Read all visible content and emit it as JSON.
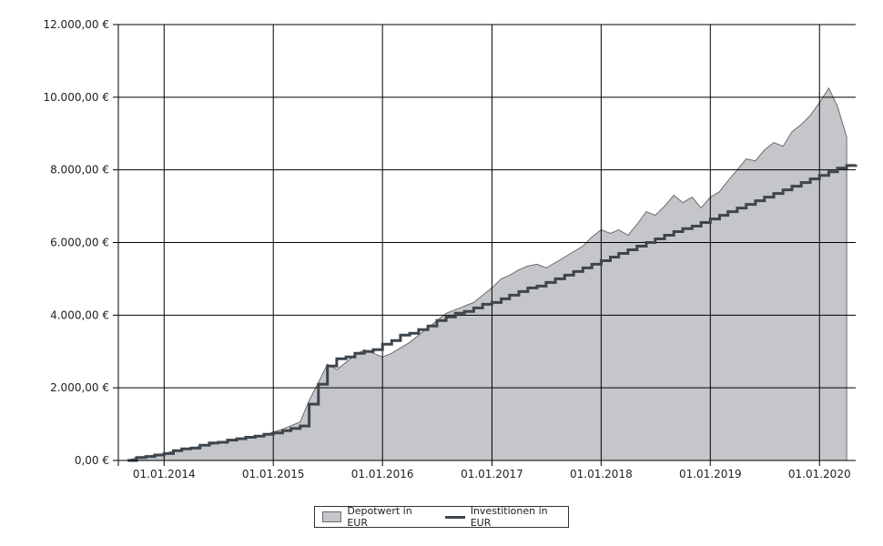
{
  "chart_data": {
    "type": "area",
    "title": "",
    "xlabel": "",
    "ylabel": "",
    "ylim": [
      0,
      12000
    ],
    "xlim": [
      "2013-08-01",
      "2020-05-01"
    ],
    "grid": true,
    "legend_position": "bottom-center",
    "y_ticks": [
      {
        "value": 0,
        "label": "0,00 €"
      },
      {
        "value": 2000,
        "label": "2.000,00 €"
      },
      {
        "value": 4000,
        "label": "4.000,00 €"
      },
      {
        "value": 6000,
        "label": "6.000,00 €"
      },
      {
        "value": 8000,
        "label": "8.000,00 €"
      },
      {
        "value": 10000,
        "label": "10.000,00 €"
      },
      {
        "value": 12000,
        "label": "12.000,00 €"
      }
    ],
    "x_ticks": [
      {
        "date": "2014-01-01",
        "label": "01.01.2014"
      },
      {
        "date": "2015-01-01",
        "label": "01.01.2015"
      },
      {
        "date": "2016-01-01",
        "label": "01.01.2016"
      },
      {
        "date": "2017-01-01",
        "label": "01.01.2017"
      },
      {
        "date": "2018-01-01",
        "label": "01.01.2018"
      },
      {
        "date": "2019-01-01",
        "label": "01.01.2019"
      },
      {
        "date": "2020-01-01",
        "label": "01.01.2020"
      }
    ],
    "series": [
      {
        "name": "Depotwert in EUR",
        "kind": "area",
        "color": "#c4c6c9",
        "stroke": "#6b6b6b",
        "points": [
          [
            "2013-09-01",
            0
          ],
          [
            "2013-10-01",
            80
          ],
          [
            "2013-11-01",
            110
          ],
          [
            "2013-12-01",
            150
          ],
          [
            "2014-01-01",
            190
          ],
          [
            "2014-02-01",
            260
          ],
          [
            "2014-03-01",
            300
          ],
          [
            "2014-04-01",
            330
          ],
          [
            "2014-05-01",
            390
          ],
          [
            "2014-06-01",
            430
          ],
          [
            "2014-07-01",
            470
          ],
          [
            "2014-08-01",
            520
          ],
          [
            "2014-09-01",
            560
          ],
          [
            "2014-10-01",
            620
          ],
          [
            "2014-11-01",
            660
          ],
          [
            "2014-12-01",
            700
          ],
          [
            "2015-01-01",
            780
          ],
          [
            "2015-02-01",
            860
          ],
          [
            "2015-03-01",
            960
          ],
          [
            "2015-04-01",
            1060
          ],
          [
            "2015-05-01",
            1650
          ],
          [
            "2015-06-01",
            2150
          ],
          [
            "2015-07-01",
            2650
          ],
          [
            "2015-08-01",
            2500
          ],
          [
            "2015-09-01",
            2700
          ],
          [
            "2015-10-01",
            2900
          ],
          [
            "2015-11-01",
            3050
          ],
          [
            "2015-12-01",
            2950
          ],
          [
            "2016-01-01",
            2850
          ],
          [
            "2016-02-01",
            2950
          ],
          [
            "2016-03-01",
            3100
          ],
          [
            "2016-04-01",
            3250
          ],
          [
            "2016-05-01",
            3450
          ],
          [
            "2016-06-01",
            3650
          ],
          [
            "2016-07-01",
            3850
          ],
          [
            "2016-08-01",
            4050
          ],
          [
            "2016-09-01",
            4150
          ],
          [
            "2016-10-01",
            4250
          ],
          [
            "2016-11-01",
            4350
          ],
          [
            "2016-12-01",
            4550
          ],
          [
            "2017-01-01",
            4750
          ],
          [
            "2017-02-01",
            5000
          ],
          [
            "2017-03-01",
            5100
          ],
          [
            "2017-04-01",
            5250
          ],
          [
            "2017-05-01",
            5350
          ],
          [
            "2017-06-01",
            5400
          ],
          [
            "2017-07-01",
            5300
          ],
          [
            "2017-08-01",
            5450
          ],
          [
            "2017-09-01",
            5600
          ],
          [
            "2017-10-01",
            5750
          ],
          [
            "2017-11-01",
            5900
          ],
          [
            "2017-12-01",
            6150
          ],
          [
            "2018-01-01",
            6350
          ],
          [
            "2018-02-01",
            6250
          ],
          [
            "2018-03-01",
            6350
          ],
          [
            "2018-04-01",
            6200
          ],
          [
            "2018-05-01",
            6500
          ],
          [
            "2018-06-01",
            6850
          ],
          [
            "2018-07-01",
            6750
          ],
          [
            "2018-08-01",
            7000
          ],
          [
            "2018-09-01",
            7300
          ],
          [
            "2018-10-01",
            7100
          ],
          [
            "2018-11-01",
            7250
          ],
          [
            "2018-12-01",
            6950
          ],
          [
            "2019-01-01",
            7250
          ],
          [
            "2019-02-01",
            7400
          ],
          [
            "2019-03-01",
            7700
          ],
          [
            "2019-04-01",
            8000
          ],
          [
            "2019-05-01",
            8300
          ],
          [
            "2019-06-01",
            8250
          ],
          [
            "2019-07-01",
            8550
          ],
          [
            "2019-08-01",
            8750
          ],
          [
            "2019-09-01",
            8650
          ],
          [
            "2019-10-01",
            9050
          ],
          [
            "2019-11-01",
            9250
          ],
          [
            "2019-12-01",
            9500
          ],
          [
            "2020-01-01",
            9850
          ],
          [
            "2020-02-01",
            10250
          ],
          [
            "2020-03-01",
            9750
          ],
          [
            "2020-04-01",
            8900
          ]
        ]
      },
      {
        "name": "Investitionen in EUR",
        "kind": "step",
        "color": "#3e464d",
        "points": [
          [
            "2013-09-01",
            0
          ],
          [
            "2013-10-01",
            80
          ],
          [
            "2013-11-01",
            110
          ],
          [
            "2013-12-01",
            150
          ],
          [
            "2014-01-01",
            190
          ],
          [
            "2014-02-01",
            270
          ],
          [
            "2014-03-01",
            320
          ],
          [
            "2014-04-01",
            340
          ],
          [
            "2014-05-01",
            420
          ],
          [
            "2014-06-01",
            480
          ],
          [
            "2014-07-01",
            500
          ],
          [
            "2014-08-01",
            560
          ],
          [
            "2014-09-01",
            600
          ],
          [
            "2014-10-01",
            640
          ],
          [
            "2014-11-01",
            670
          ],
          [
            "2014-12-01",
            720
          ],
          [
            "2015-01-01",
            760
          ],
          [
            "2015-02-01",
            820
          ],
          [
            "2015-03-01",
            880
          ],
          [
            "2015-04-01",
            950
          ],
          [
            "2015-05-01",
            1550
          ],
          [
            "2015-06-01",
            2100
          ],
          [
            "2015-07-01",
            2600
          ],
          [
            "2015-08-01",
            2800
          ],
          [
            "2015-09-01",
            2850
          ],
          [
            "2015-10-01",
            2950
          ],
          [
            "2015-11-01",
            3000
          ],
          [
            "2015-12-01",
            3050
          ],
          [
            "2016-01-01",
            3200
          ],
          [
            "2016-02-01",
            3300
          ],
          [
            "2016-03-01",
            3450
          ],
          [
            "2016-04-01",
            3500
          ],
          [
            "2016-05-01",
            3600
          ],
          [
            "2016-06-01",
            3700
          ],
          [
            "2016-07-01",
            3850
          ],
          [
            "2016-08-01",
            3950
          ],
          [
            "2016-09-01",
            4050
          ],
          [
            "2016-10-01",
            4100
          ],
          [
            "2016-11-01",
            4200
          ],
          [
            "2016-12-01",
            4300
          ],
          [
            "2017-01-01",
            4350
          ],
          [
            "2017-02-01",
            4450
          ],
          [
            "2017-03-01",
            4550
          ],
          [
            "2017-04-01",
            4650
          ],
          [
            "2017-05-01",
            4750
          ],
          [
            "2017-06-01",
            4800
          ],
          [
            "2017-07-01",
            4900
          ],
          [
            "2017-08-01",
            5000
          ],
          [
            "2017-09-01",
            5100
          ],
          [
            "2017-10-01",
            5200
          ],
          [
            "2017-11-01",
            5300
          ],
          [
            "2017-12-01",
            5400
          ],
          [
            "2018-01-01",
            5500
          ],
          [
            "2018-02-01",
            5600
          ],
          [
            "2018-03-01",
            5700
          ],
          [
            "2018-04-01",
            5800
          ],
          [
            "2018-05-01",
            5900
          ],
          [
            "2018-06-01",
            6000
          ],
          [
            "2018-07-01",
            6100
          ],
          [
            "2018-08-01",
            6200
          ],
          [
            "2018-09-01",
            6300
          ],
          [
            "2018-10-01",
            6380
          ],
          [
            "2018-11-01",
            6450
          ],
          [
            "2018-12-01",
            6550
          ],
          [
            "2019-01-01",
            6650
          ],
          [
            "2019-02-01",
            6750
          ],
          [
            "2019-03-01",
            6850
          ],
          [
            "2019-04-01",
            6950
          ],
          [
            "2019-05-01",
            7050
          ],
          [
            "2019-06-01",
            7150
          ],
          [
            "2019-07-01",
            7250
          ],
          [
            "2019-08-01",
            7350
          ],
          [
            "2019-09-01",
            7450
          ],
          [
            "2019-10-01",
            7550
          ],
          [
            "2019-11-01",
            7650
          ],
          [
            "2019-12-01",
            7750
          ],
          [
            "2020-01-01",
            7850
          ],
          [
            "2020-02-01",
            7950
          ],
          [
            "2020-03-01",
            8050
          ],
          [
            "2020-04-01",
            8120
          ],
          [
            "2020-05-01",
            8150
          ]
        ]
      }
    ]
  }
}
